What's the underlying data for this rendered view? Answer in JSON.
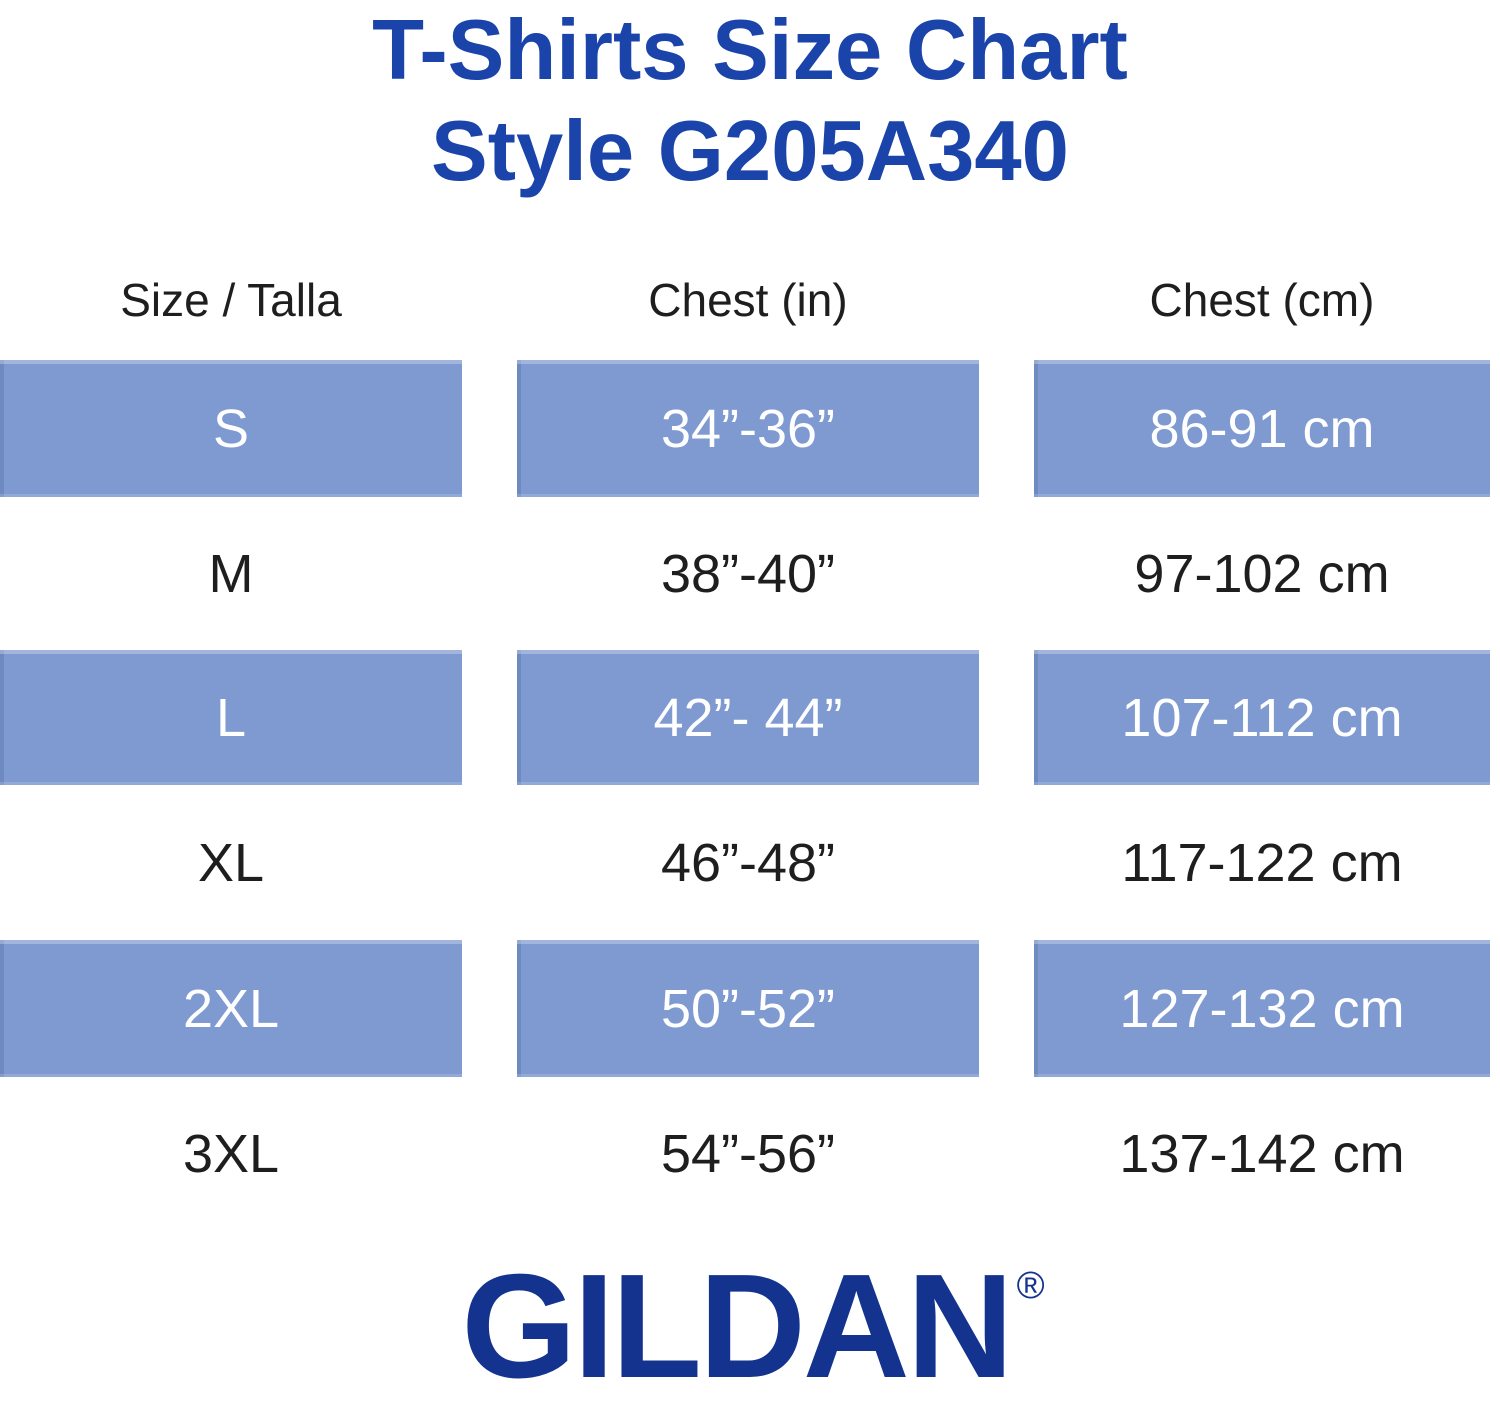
{
  "title": {
    "line1": "T-Shirts Size Chart",
    "line2": "Style G205A340"
  },
  "chart_data": {
    "type": "table",
    "title": "T-Shirts Size Chart Style G205A340",
    "columns": [
      "Size / Talla",
      "Chest (in)",
      "Chest (cm)"
    ],
    "rows": [
      [
        "S",
        "34”-36”",
        "86-91 cm"
      ],
      [
        "M",
        "38”-40”",
        "97-102 cm"
      ],
      [
        "L",
        "42”- 44”",
        "107-112 cm"
      ],
      [
        "XL",
        "46”-48”",
        "117-122 cm"
      ],
      [
        "2XL",
        "50”-52”",
        "127-132 cm"
      ],
      [
        "3XL",
        "54”-56”",
        "137-142 cm"
      ]
    ],
    "highlighted_rows": [
      "S",
      "L",
      "2XL"
    ],
    "layout": {
      "highlight_style": "alternating periwinkle-blue bands on rows S, L and 2XL; white text on blue bands, dark text on white rows",
      "grid": "off",
      "columns_count": 3
    }
  },
  "brand": {
    "logo_text": "GILDAN",
    "registered_mark": "®"
  },
  "colors": {
    "title_blue": "#1b44aa",
    "row_blue": "#7e9ad0",
    "logo_blue": "#14338e",
    "text_dark": "#1e1e1e",
    "row_text_white": "#ffffff"
  }
}
